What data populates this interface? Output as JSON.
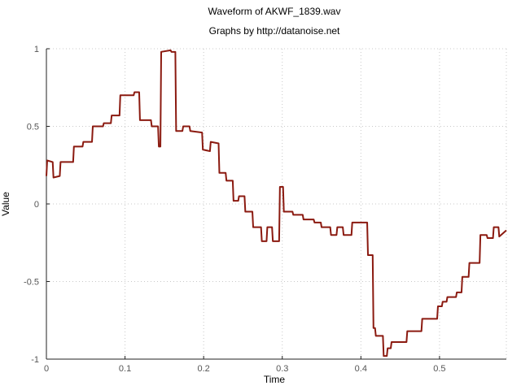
{
  "chart_data": {
    "type": "line",
    "title": "Waveform of AKWF_1839.wav",
    "subtitle": "Graphs by http://datanoise.net",
    "xlabel": "Time",
    "ylabel": "Value",
    "xlim": [
      0,
      0.585
    ],
    "ylim": [
      -1,
      1
    ],
    "xticks": [
      0,
      0.1,
      0.2,
      0.3,
      0.4,
      0.5
    ],
    "xtick_labels": [
      "0",
      "0.1",
      "0.2",
      "0.3",
      "0.4",
      "0.5"
    ],
    "yticks": [
      1,
      0.5,
      0,
      -0.5,
      -1
    ],
    "ytick_labels": [
      "1",
      "0.5",
      "0",
      "-0.5",
      "-1"
    ],
    "grid": true,
    "legend": "none",
    "series": [
      {
        "color": "#8b1a10",
        "x": [
          0,
          0.001,
          0.008,
          0.009,
          0.017,
          0.018,
          0.034,
          0.035,
          0.046,
          0.047,
          0.058,
          0.059,
          0.072,
          0.073,
          0.082,
          0.083,
          0.093,
          0.094,
          0.111,
          0.112,
          0.118,
          0.119,
          0.133,
          0.134,
          0.142,
          0.143,
          0.145,
          0.146,
          0.158,
          0.159,
          0.164,
          0.165,
          0.173,
          0.174,
          0.182,
          0.183,
          0.198,
          0.199,
          0.208,
          0.209,
          0.219,
          0.22,
          0.228,
          0.229,
          0.237,
          0.238,
          0.244,
          0.245,
          0.252,
          0.253,
          0.262,
          0.263,
          0.273,
          0.274,
          0.28,
          0.281,
          0.287,
          0.288,
          0.296,
          0.297,
          0.301,
          0.302,
          0.313,
          0.314,
          0.326,
          0.327,
          0.34,
          0.341,
          0.349,
          0.35,
          0.361,
          0.362,
          0.369,
          0.37,
          0.377,
          0.378,
          0.388,
          0.389,
          0.408,
          0.409,
          0.415,
          0.416,
          0.418,
          0.419,
          0.428,
          0.429,
          0.433,
          0.434,
          0.438,
          0.439,
          0.458,
          0.459,
          0.477,
          0.478,
          0.497,
          0.498,
          0.503,
          0.504,
          0.509,
          0.51,
          0.521,
          0.522,
          0.528,
          0.529,
          0.537,
          0.538,
          0.551,
          0.552,
          0.56,
          0.561,
          0.568,
          0.569,
          0.575,
          0.576,
          0.585
        ],
        "y": [
          0.18,
          0.28,
          0.27,
          0.17,
          0.18,
          0.27,
          0.27,
          0.37,
          0.37,
          0.4,
          0.4,
          0.5,
          0.5,
          0.52,
          0.52,
          0.57,
          0.57,
          0.7,
          0.7,
          0.72,
          0.72,
          0.54,
          0.54,
          0.5,
          0.5,
          0.37,
          0.37,
          0.98,
          0.99,
          0.98,
          0.98,
          0.47,
          0.47,
          0.5,
          0.5,
          0.47,
          0.46,
          0.35,
          0.34,
          0.4,
          0.39,
          0.2,
          0.2,
          0.15,
          0.15,
          0.02,
          0.02,
          0.05,
          0.05,
          -0.05,
          -0.05,
          -0.15,
          -0.15,
          -0.24,
          -0.24,
          -0.15,
          -0.15,
          -0.24,
          -0.24,
          0.11,
          0.11,
          -0.05,
          -0.05,
          -0.07,
          -0.07,
          -0.1,
          -0.1,
          -0.12,
          -0.12,
          -0.15,
          -0.15,
          -0.2,
          -0.2,
          -0.15,
          -0.15,
          -0.2,
          -0.2,
          -0.12,
          -0.12,
          -0.33,
          -0.33,
          -0.8,
          -0.8,
          -0.85,
          -0.85,
          -0.98,
          -0.98,
          -0.93,
          -0.93,
          -0.89,
          -0.89,
          -0.82,
          -0.82,
          -0.74,
          -0.74,
          -0.66,
          -0.66,
          -0.63,
          -0.63,
          -0.6,
          -0.6,
          -0.57,
          -0.57,
          -0.47,
          -0.47,
          -0.38,
          -0.38,
          -0.2,
          -0.2,
          -0.22,
          -0.22,
          -0.15,
          -0.15,
          -0.21,
          -0.17
        ]
      }
    ]
  }
}
